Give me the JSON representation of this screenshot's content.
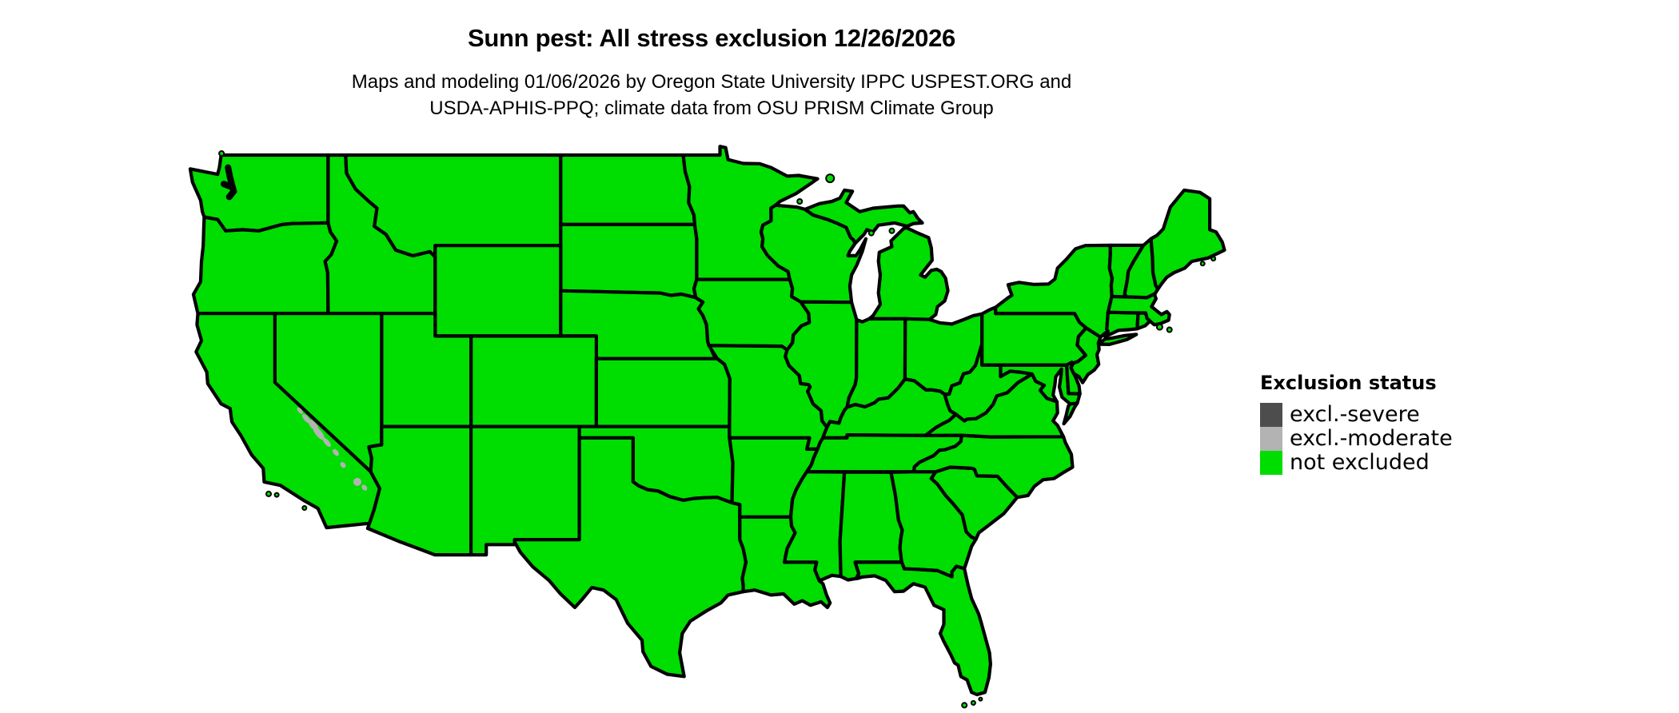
{
  "title": "Sunn pest: All stress exclusion 12/26/2026",
  "subtitle": {
    "line1": "Maps and modeling 01/06/2026 by Oregon State University IPPC USPEST.ORG and",
    "line2": "USDA-APHIS-PPQ; climate data from OSU PRISM Climate Group"
  },
  "legend": {
    "title": "Exclusion status",
    "items": [
      {
        "label": "excl.-severe",
        "color": "#4d4d4d"
      },
      {
        "label": "excl.-moderate",
        "color": "#b3b3b3"
      },
      {
        "label": "not excluded",
        "color": "#00dd00"
      }
    ]
  },
  "map": {
    "region": "contiguous-us",
    "fill_status": "not excluded",
    "fill_color": "#00dd00",
    "moderate_patch_color": "#b3b3b3",
    "border_color": "#000000",
    "water_color": "#ffffff",
    "background_color": "#ffffff"
  }
}
